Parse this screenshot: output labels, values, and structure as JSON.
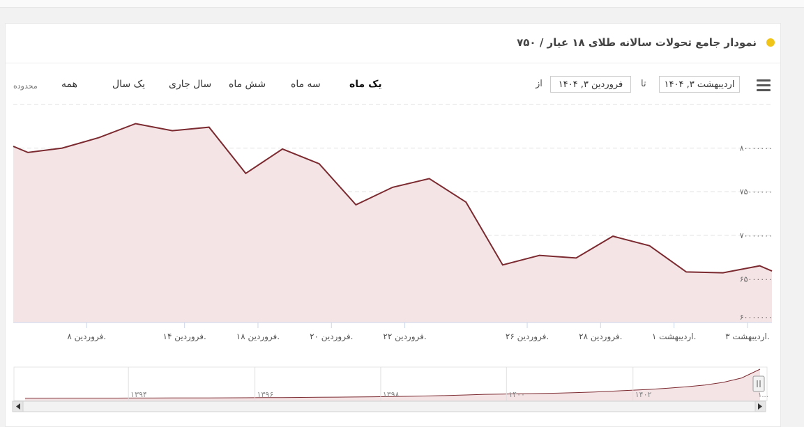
{
  "header": {
    "title": "نمودار جامع تحولات سالانه طلای ۱۸ عیار / ۷۵۰"
  },
  "range_selector": {
    "label": "محدوده",
    "buttons": [
      {
        "id": "all",
        "label": "همه"
      },
      {
        "id": "1y",
        "label": "یک سال"
      },
      {
        "id": "ytd",
        "label": "سال جاری"
      },
      {
        "id": "6m",
        "label": "شش ماه"
      },
      {
        "id": "3m",
        "label": "سه ماه"
      },
      {
        "id": "1m",
        "label": "یک ماه",
        "selected": true
      }
    ]
  },
  "date_range": {
    "from_label": "از",
    "from_value": "فروردین ۳, ۱۴۰۴",
    "to_label": "تا",
    "to_value": "اردیبهشت ۳, ۱۴۰۴"
  },
  "colors": {
    "line": "#7b2a30",
    "fill": "#f4e4e6",
    "accent_dot": "#f0c419"
  },
  "chart_data": {
    "type": "area",
    "ylim": [
      60000000,
      85000000
    ],
    "yticks": [
      {
        "value": 65000000,
        "label": "۶۵۰۰۰۰۰۰"
      },
      {
        "value": 70000000,
        "label": "۷۰۰۰۰۰۰۰"
      },
      {
        "value": 75000000,
        "label": "۷۵۰۰۰۰۰۰"
      },
      {
        "value": 80000000,
        "label": "۸۰۰۰۰۰۰۰"
      }
    ],
    "ytick_bottom_label": "۶۰۰۰۰۰۰۰",
    "xlim": [
      3,
      34
    ],
    "xticks": [
      {
        "x": 6,
        "label": "فروردین ۸."
      },
      {
        "x": 10,
        "label": "فروردین ۱۴."
      },
      {
        "x": 13,
        "label": "فروردین ۱۸."
      },
      {
        "x": 16,
        "label": "فروردین ۲۰."
      },
      {
        "x": 19,
        "label": "فروردین ۲۲."
      },
      {
        "x": 24,
        "label": "فروردین ۲۶."
      },
      {
        "x": 27,
        "label": "فروردین ۲۸."
      },
      {
        "x": 30,
        "label": "اردیبهشت ۱."
      },
      {
        "x": 33,
        "label": "اردیبهشت ۳."
      }
    ],
    "points": [
      {
        "x": 3,
        "y": 80200000
      },
      {
        "x": 3.6,
        "y": 79500000
      },
      {
        "x": 5,
        "y": 80000000
      },
      {
        "x": 6.5,
        "y": 81200000
      },
      {
        "x": 8,
        "y": 82800000
      },
      {
        "x": 9.5,
        "y": 82000000
      },
      {
        "x": 11,
        "y": 82400000
      },
      {
        "x": 12.5,
        "y": 77100000
      },
      {
        "x": 14,
        "y": 79900000
      },
      {
        "x": 15.5,
        "y": 78200000
      },
      {
        "x": 17,
        "y": 73500000
      },
      {
        "x": 18.5,
        "y": 75500000
      },
      {
        "x": 20,
        "y": 76500000
      },
      {
        "x": 21.5,
        "y": 73800000
      },
      {
        "x": 23,
        "y": 66600000
      },
      {
        "x": 24.5,
        "y": 67700000
      },
      {
        "x": 26,
        "y": 67400000
      },
      {
        "x": 27.5,
        "y": 69900000
      },
      {
        "x": 29,
        "y": 68800000
      },
      {
        "x": 30.5,
        "y": 65800000
      },
      {
        "x": 32,
        "y": 65700000
      },
      {
        "x": 33.5,
        "y": 66500000
      },
      {
        "x": 34,
        "y": 65900000
      }
    ],
    "navigator": {
      "labels": [
        {
          "pos": 0.152,
          "label": "۱۳۹۴"
        },
        {
          "pos": 0.32,
          "label": "۱۳۹۶"
        },
        {
          "pos": 0.487,
          "label": "۱۳۹۸"
        },
        {
          "pos": 0.654,
          "label": "۱۴۰۰"
        },
        {
          "pos": 0.822,
          "label": "۱۴۰۲"
        }
      ],
      "end_label": "۱...",
      "values": [
        0.01,
        0.01,
        0.011,
        0.012,
        0.012,
        0.013,
        0.014,
        0.015,
        0.016,
        0.018,
        0.02,
        0.022,
        0.025,
        0.028,
        0.032,
        0.036,
        0.04,
        0.045,
        0.05,
        0.057,
        0.065,
        0.075,
        0.085,
        0.1,
        0.12,
        0.14,
        0.15,
        0.16,
        0.17,
        0.18,
        0.2,
        0.22,
        0.25,
        0.28,
        0.31,
        0.35,
        0.4,
        0.46,
        0.55,
        0.7,
        1.0
      ]
    }
  }
}
